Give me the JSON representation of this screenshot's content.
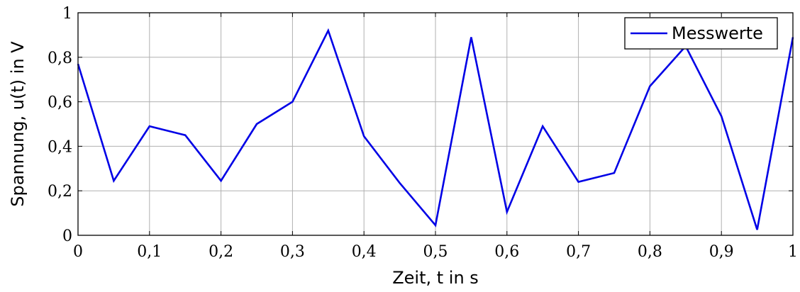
{
  "chart_data": {
    "type": "line",
    "title": "",
    "xlabel": "Zeit, t in s",
    "ylabel": "Spannung, u(t) in V",
    "xlim": [
      0,
      1
    ],
    "ylim": [
      0,
      1
    ],
    "grid": true,
    "legend_position": "top-right",
    "x_ticks": [
      "0",
      "0,1",
      "0,2",
      "0,3",
      "0,4",
      "0,5",
      "0,6",
      "0,7",
      "0,8",
      "0,9",
      "1"
    ],
    "y_ticks": [
      "0",
      "0,2",
      "0,4",
      "0,6",
      "0,8",
      "1"
    ],
    "series": [
      {
        "name": "Messwerte",
        "color": "#0000e6",
        "x": [
          0,
          0.05,
          0.1,
          0.15,
          0.2,
          0.25,
          0.3,
          0.35,
          0.4,
          0.45,
          0.5,
          0.55,
          0.6,
          0.65,
          0.7,
          0.75,
          0.8,
          0.85,
          0.9,
          0.95,
          1
        ],
        "y": [
          0.77,
          0.245,
          0.49,
          0.45,
          0.245,
          0.5,
          0.6,
          0.92,
          0.445,
          0.235,
          0.045,
          0.89,
          0.105,
          0.49,
          0.24,
          0.28,
          0.67,
          0.85,
          0.535,
          0.025,
          0.89
        ]
      }
    ]
  }
}
